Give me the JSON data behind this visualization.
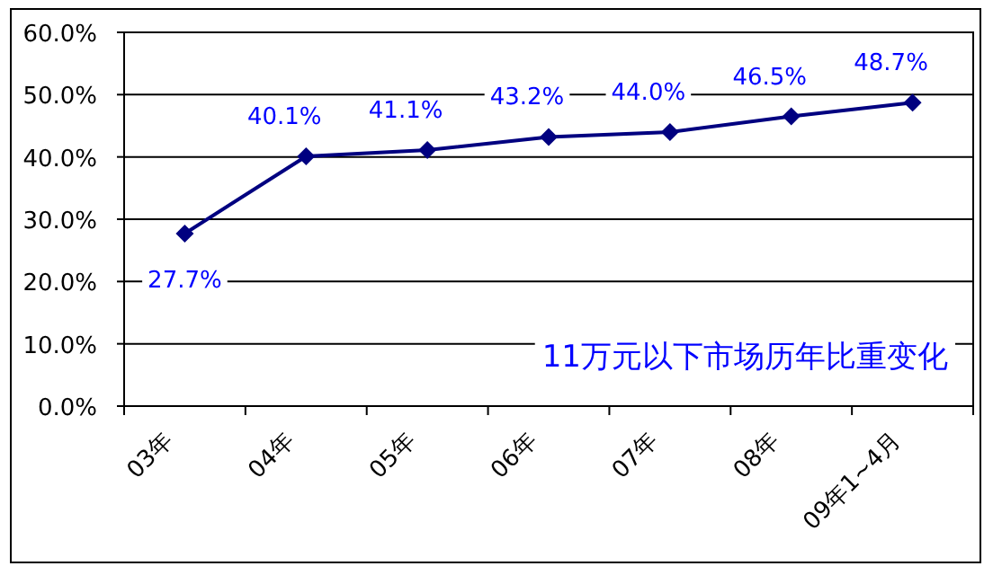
{
  "chart_data": {
    "type": "line",
    "categories": [
      "03年",
      "04年",
      "05年",
      "06年",
      "07年",
      "08年",
      "09年1~4月"
    ],
    "series": [
      {
        "color": "#000080",
        "values": [
          27.7,
          40.1,
          41.1,
          43.2,
          44.0,
          46.5,
          48.7
        ],
        "value_labels": [
          "27.7%",
          "40.1%",
          "41.1%",
          "43.2%",
          "44.0%",
          "46.5%",
          "48.7%"
        ]
      }
    ],
    "ylim": [
      0,
      60
    ],
    "yticks": [
      {
        "value": 0,
        "label": "0.0%"
      },
      {
        "value": 10,
        "label": "10.0%"
      },
      {
        "value": 20,
        "label": "20.0%"
      },
      {
        "value": 30,
        "label": "30.0%"
      },
      {
        "value": 40,
        "label": "40.0%"
      },
      {
        "value": 50,
        "label": "50.0%"
      },
      {
        "value": 60,
        "label": "60.0%"
      }
    ],
    "grid": "y",
    "marker": "diamond",
    "line_style": "solid",
    "annotations": [
      "11万元以下市场历年比重变化"
    ]
  }
}
